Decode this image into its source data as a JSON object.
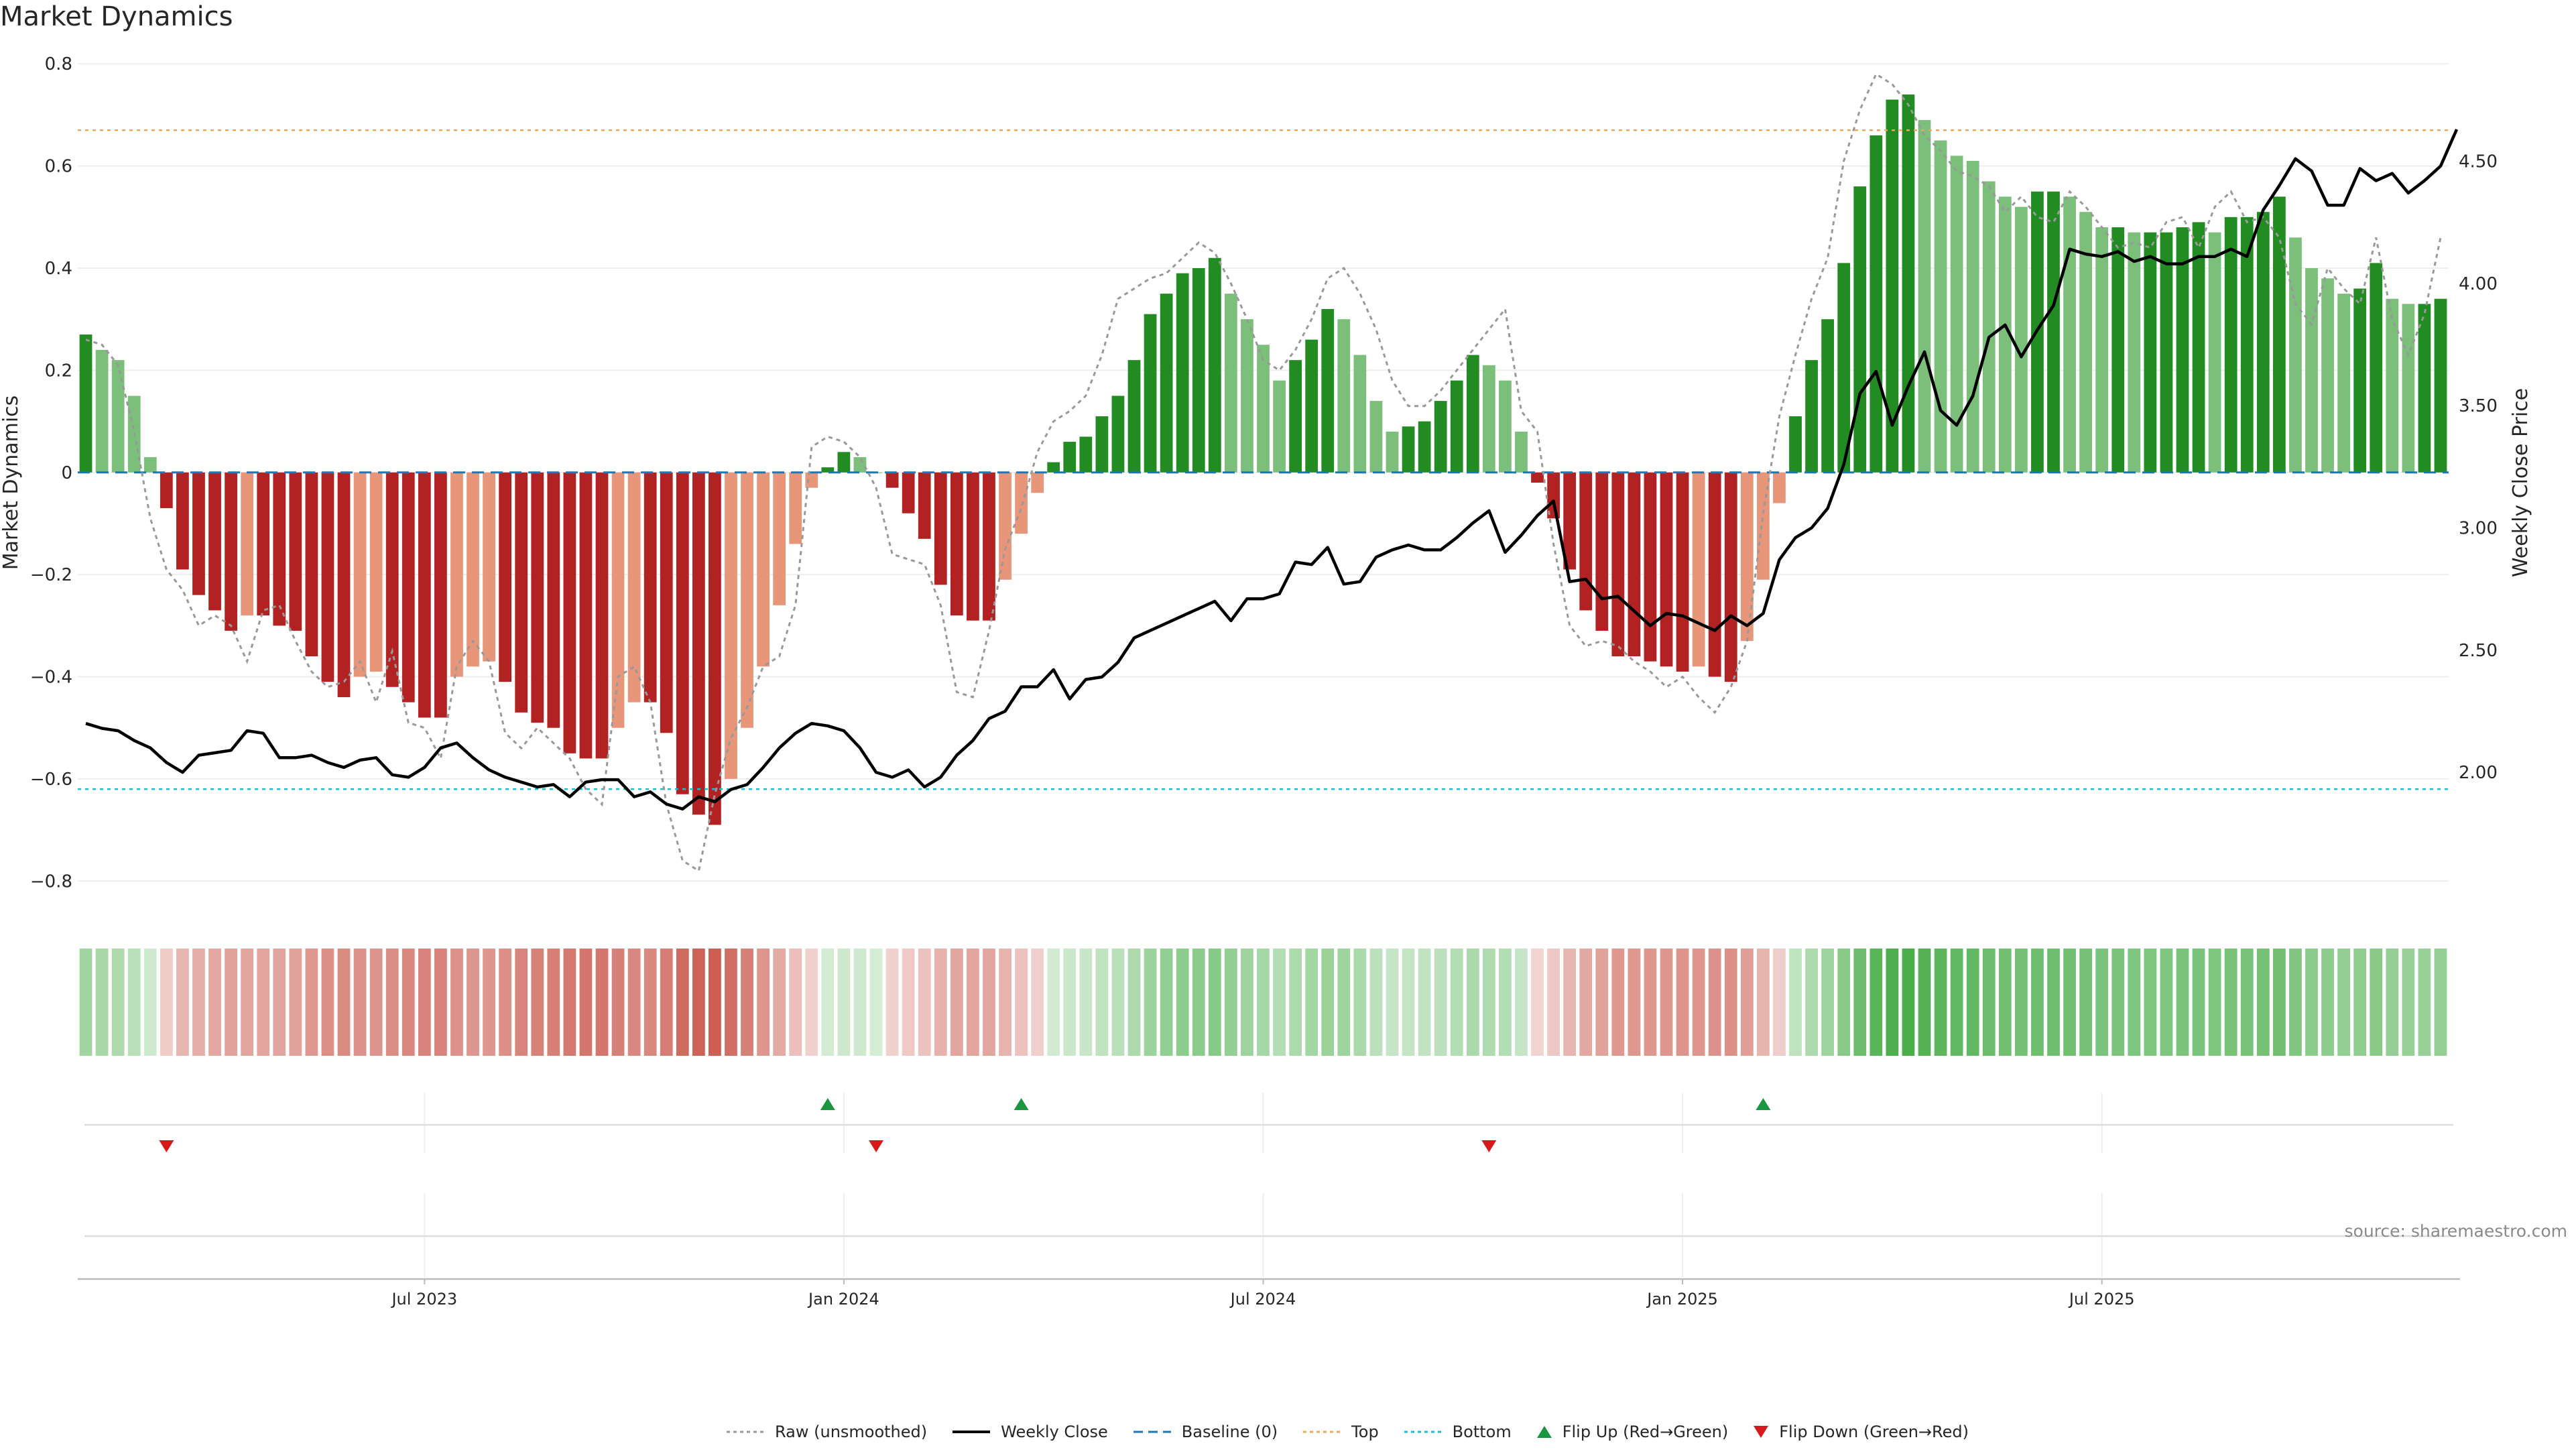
{
  "chart_data": {
    "type": "bar",
    "title": "Market Dynamics",
    "ylabel": "Market Dynamics",
    "y2label": "Weekly Close Price",
    "ylim": [
      -0.86,
      0.82
    ],
    "y2lim": [
      1.43,
      4.94
    ],
    "yticks": [
      "0.8",
      "0.6",
      "0.4",
      "0.2",
      "0",
      "−0.2",
      "−0.4",
      "−0.6",
      "−0.8"
    ],
    "yticks_values": [
      0.8,
      0.6,
      0.4,
      0.2,
      0,
      -0.2,
      -0.4,
      -0.6,
      -0.8
    ],
    "y2ticks": [
      "4.50",
      "4.00",
      "3.50",
      "3.00",
      "2.50",
      "2.00"
    ],
    "y2ticks_values": [
      4.5,
      4.0,
      3.5,
      3.0,
      2.5,
      2.0
    ],
    "xticks": [
      "Jul 2023",
      "Jan 2024",
      "Jul 2024",
      "Jan 2025",
      "Jul 2025"
    ],
    "xticks_week_index": [
      21.5,
      47.5,
      73.5,
      99.5,
      125.5
    ],
    "top_level": 0.67,
    "bottom_level": -0.62,
    "baseline": 0,
    "bars": [
      0.27,
      0.24,
      0.22,
      0.15,
      0.03,
      -0.07,
      -0.19,
      -0.24,
      -0.27,
      -0.31,
      -0.28,
      -0.28,
      -0.3,
      -0.31,
      -0.36,
      -0.41,
      -0.44,
      -0.4,
      -0.39,
      -0.42,
      -0.45,
      -0.48,
      -0.48,
      -0.4,
      -0.38,
      -0.37,
      -0.41,
      -0.47,
      -0.49,
      -0.5,
      -0.55,
      -0.56,
      -0.56,
      -0.5,
      -0.45,
      -0.45,
      -0.51,
      -0.63,
      -0.67,
      -0.69,
      -0.6,
      -0.5,
      -0.38,
      -0.26,
      -0.14,
      -0.03,
      0.01,
      0.04,
      0.03,
      0.0,
      -0.03,
      -0.08,
      -0.13,
      -0.22,
      -0.28,
      -0.29,
      -0.29,
      -0.21,
      -0.12,
      -0.04,
      0.02,
      0.06,
      0.07,
      0.11,
      0.15,
      0.22,
      0.31,
      0.35,
      0.39,
      0.4,
      0.42,
      0.35,
      0.3,
      0.25,
      0.18,
      0.22,
      0.26,
      0.32,
      0.3,
      0.23,
      0.14,
      0.08,
      0.09,
      0.1,
      0.14,
      0.18,
      0.23,
      0.21,
      0.18,
      0.08,
      -0.02,
      -0.09,
      -0.19,
      -0.27,
      -0.31,
      -0.36,
      -0.36,
      -0.37,
      -0.38,
      -0.39,
      -0.38,
      -0.4,
      -0.41,
      -0.33,
      -0.21,
      -0.06,
      0.11,
      0.22,
      0.3,
      0.41,
      0.56,
      0.66,
      0.73,
      0.74,
      0.69,
      0.65,
      0.62,
      0.61,
      0.57,
      0.54,
      0.52,
      0.55,
      0.55,
      0.54,
      0.51,
      0.48,
      0.48,
      0.47,
      0.47,
      0.47,
      0.48,
      0.49,
      0.47,
      0.5,
      0.5,
      0.51,
      0.54,
      0.46,
      0.4,
      0.38,
      0.35,
      0.36,
      0.41,
      0.34,
      0.33,
      0.33,
      0.34
    ],
    "bar_colors": {
      "strong_up": "#228b22",
      "weak_up": "#7bbf7b",
      "strong_down": "#b22222",
      "weak_down": "#e8967a"
    },
    "raw": [
      0.26,
      0.25,
      0.21,
      0.08,
      -0.09,
      -0.19,
      -0.23,
      -0.3,
      -0.28,
      -0.3,
      -0.37,
      -0.27,
      -0.26,
      -0.33,
      -0.39,
      -0.42,
      -0.41,
      -0.37,
      -0.45,
      -0.35,
      -0.49,
      -0.5,
      -0.56,
      -0.38,
      -0.33,
      -0.37,
      -0.51,
      -0.54,
      -0.5,
      -0.53,
      -0.56,
      -0.62,
      -0.65,
      -0.4,
      -0.38,
      -0.45,
      -0.65,
      -0.76,
      -0.78,
      -0.63,
      -0.52,
      -0.46,
      -0.38,
      -0.36,
      -0.26,
      0.05,
      0.07,
      0.06,
      0.03,
      -0.03,
      -0.16,
      -0.17,
      -0.18,
      -0.26,
      -0.43,
      -0.44,
      -0.31,
      -0.15,
      -0.07,
      0.04,
      0.1,
      0.12,
      0.15,
      0.23,
      0.34,
      0.36,
      0.38,
      0.39,
      0.42,
      0.45,
      0.43,
      0.37,
      0.3,
      0.22,
      0.2,
      0.24,
      0.3,
      0.38,
      0.4,
      0.35,
      0.28,
      0.18,
      0.13,
      0.13,
      0.16,
      0.2,
      0.24,
      0.28,
      0.32,
      0.12,
      0.08,
      -0.14,
      -0.3,
      -0.34,
      -0.33,
      -0.34,
      -0.37,
      -0.39,
      -0.42,
      -0.4,
      -0.44,
      -0.47,
      -0.42,
      -0.33,
      -0.08,
      0.11,
      0.23,
      0.34,
      0.42,
      0.61,
      0.71,
      0.78,
      0.76,
      0.72,
      0.66,
      0.63,
      0.59,
      0.58,
      0.56,
      0.51,
      0.54,
      0.5,
      0.49,
      0.55,
      0.52,
      0.48,
      0.44,
      0.45,
      0.44,
      0.49,
      0.5,
      0.44,
      0.52,
      0.55,
      0.49,
      0.5,
      0.46,
      0.33,
      0.29,
      0.4,
      0.36,
      0.33,
      0.46,
      0.3,
      0.23,
      0.31,
      0.46
    ],
    "weekly_close": [
      2.2,
      2.18,
      2.17,
      2.13,
      2.1,
      2.04,
      2.0,
      2.07,
      2.08,
      2.09,
      2.17,
      2.16,
      2.06,
      2.06,
      2.07,
      2.04,
      2.02,
      2.05,
      2.06,
      1.99,
      1.98,
      2.02,
      2.1,
      2.12,
      2.06,
      2.01,
      1.98,
      1.96,
      1.94,
      1.95,
      1.9,
      1.96,
      1.97,
      1.97,
      1.9,
      1.92,
      1.87,
      1.85,
      1.9,
      1.88,
      1.93,
      1.95,
      2.02,
      2.1,
      2.16,
      2.2,
      2.19,
      2.17,
      2.1,
      2.0,
      1.98,
      2.01,
      1.94,
      1.98,
      2.07,
      2.13,
      2.22,
      2.25,
      2.35,
      2.35,
      2.42,
      2.3,
      2.38,
      2.39,
      2.45,
      2.55,
      2.58,
      2.61,
      2.64,
      2.67,
      2.7,
      2.62,
      2.71,
      2.71,
      2.73,
      2.86,
      2.85,
      2.92,
      2.77,
      2.78,
      2.88,
      2.91,
      2.93,
      2.91,
      2.91,
      2.96,
      3.02,
      3.07,
      2.9,
      2.97,
      3.05,
      3.11,
      2.78,
      2.79,
      2.71,
      2.72,
      2.66,
      2.6,
      2.65,
      2.64,
      2.61,
      2.58,
      2.64,
      2.6,
      2.65,
      2.87,
      2.96,
      3.0,
      3.08,
      3.26,
      3.55,
      3.64,
      3.42,
      3.58,
      3.72,
      3.48,
      3.42,
      3.54,
      3.78,
      3.83,
      3.7,
      3.81,
      3.91,
      4.14,
      4.12,
      4.11,
      4.13,
      4.09,
      4.11,
      4.08,
      4.08,
      4.11,
      4.11,
      4.14,
      4.11,
      4.3,
      4.4,
      4.51,
      4.46,
      4.32,
      4.32,
      4.47,
      4.42,
      4.45,
      4.37,
      4.42,
      4.48,
      4.63
    ],
    "flip_up_week_index": [
      46,
      58,
      104
    ],
    "flip_down_week_index": [
      5,
      49,
      87
    ],
    "legend": [
      {
        "label": "Raw (unsmoothed)",
        "style": "dotted",
        "color": "#999999"
      },
      {
        "label": "Weekly Close",
        "style": "solid",
        "color": "#000000"
      },
      {
        "label": "Baseline (0)",
        "style": "dashed",
        "color": "#1f77b4"
      },
      {
        "label": "Top",
        "style": "dotted",
        "color": "#f2a65a"
      },
      {
        "label": "Bottom",
        "style": "dotted",
        "color": "#17becf"
      },
      {
        "label": "Flip Up (Red→Green)",
        "style": "triangle-up",
        "color": "#1a9641"
      },
      {
        "label": "Flip Down (Green→Red)",
        "style": "triangle-down",
        "color": "#d7191c"
      }
    ],
    "source": "source: sharemaestro.com"
  }
}
